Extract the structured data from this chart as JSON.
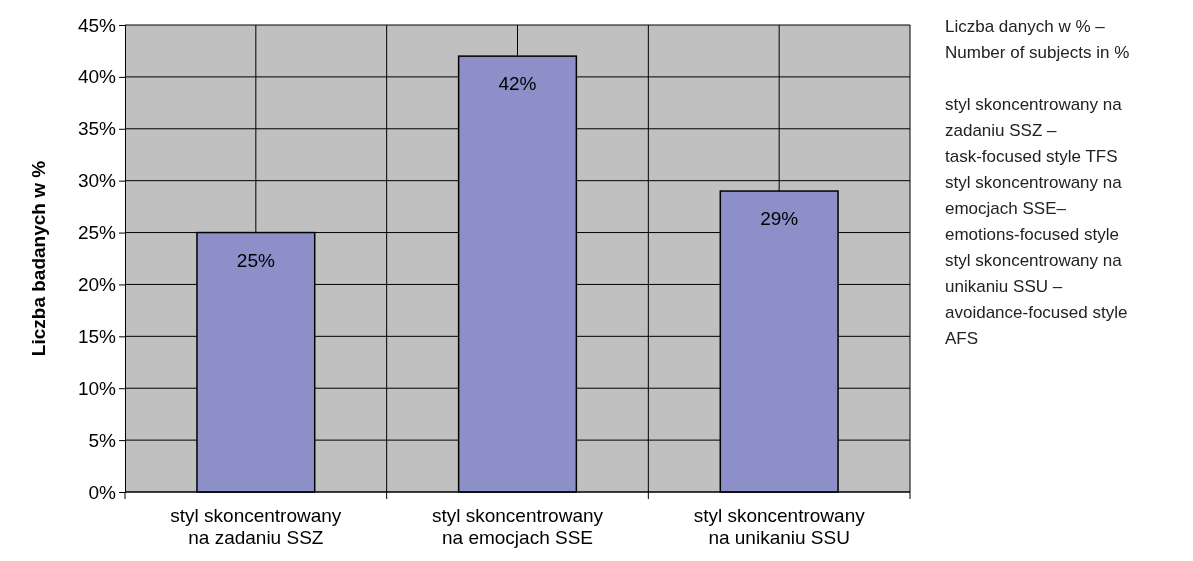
{
  "chart_data": {
    "type": "bar",
    "ylabel": "Liczba badanych  w %",
    "categories": [
      "styl skoncentrowany na zadaniu SSZ",
      "styl skoncentrowany na emocjach SSE",
      "styl skoncentrowany na unikaniu SSU"
    ],
    "values": [
      25,
      42,
      29
    ],
    "color": "#8c8fc8",
    "value_labels": [
      "25%",
      "42%",
      "29%"
    ],
    "ylim": [
      0,
      45
    ],
    "yticks": [
      {
        "value": 0,
        "label": "0%"
      },
      {
        "value": 5,
        "label": "5%"
      },
      {
        "value": 10,
        "label": "10%"
      },
      {
        "value": 15,
        "label": "15%"
      },
      {
        "value": 20,
        "label": "20%"
      },
      {
        "value": 25,
        "label": "25%"
      },
      {
        "value": 30,
        "label": "30%"
      },
      {
        "value": 35,
        "label": "35%"
      },
      {
        "value": 40,
        "label": "40%"
      },
      {
        "value": 45,
        "label": "45%"
      }
    ],
    "grid": true,
    "annotations": [
      "Liczba danych w % – Number of subjects in %",
      "styl skoncentrowany na zadaniu SSZ – task-focused style TFS",
      "styl skoncentrowany na emocjach SSE– emotions-focused style",
      "styl skoncentrowany na unikaniu SSU – avoidance-focused style AFS"
    ]
  }
}
